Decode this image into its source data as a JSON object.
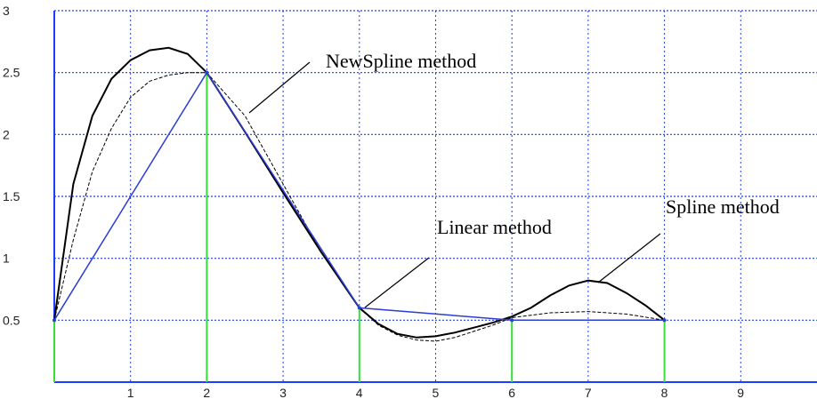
{
  "chart_data": {
    "type": "line",
    "title": "",
    "xlabel": "",
    "ylabel": "",
    "xlim": [
      0,
      10
    ],
    "ylim": [
      0,
      3
    ],
    "x_ticks": [
      "1",
      "2",
      "3",
      "4",
      "5",
      "6",
      "7",
      "8",
      "9"
    ],
    "y_ticks": [
      "0.5",
      "1",
      "1.5",
      "2",
      "2.5",
      "3"
    ],
    "grid": true,
    "data_points": {
      "x": [
        0,
        2,
        4,
        6,
        8
      ],
      "y": [
        0.5,
        2.5,
        0.6,
        0.5,
        0.5
      ]
    },
    "series": [
      {
        "style": "solid-dark",
        "x": [
          0,
          0.25,
          0.5,
          0.75,
          1.0,
          1.25,
          1.5,
          1.75,
          2.0,
          2.5,
          3.0,
          3.5,
          4.0,
          4.25,
          4.5,
          4.75,
          5.0,
          5.25,
          5.5,
          5.75,
          6.0,
          6.25,
          6.5,
          6.75,
          7.0,
          7.25,
          7.5,
          7.75,
          8.0
        ],
        "y": [
          0.5,
          1.6,
          2.15,
          2.45,
          2.6,
          2.68,
          2.7,
          2.65,
          2.5,
          2.02,
          1.53,
          1.05,
          0.6,
          0.47,
          0.39,
          0.36,
          0.37,
          0.4,
          0.44,
          0.48,
          0.53,
          0.6,
          0.7,
          0.78,
          0.82,
          0.8,
          0.72,
          0.62,
          0.5
        ]
      },
      {
        "style": "dashed",
        "x": [
          0,
          0.25,
          0.5,
          0.75,
          1.0,
          1.25,
          1.5,
          1.75,
          2.0,
          2.5,
          3.0,
          3.5,
          4.0,
          4.25,
          4.5,
          4.75,
          5.0,
          5.25,
          5.5,
          5.75,
          6.0,
          6.5,
          7.0,
          7.5,
          8.0
        ],
        "y": [
          0.5,
          1.15,
          1.7,
          2.05,
          2.3,
          2.43,
          2.48,
          2.5,
          2.5,
          2.15,
          1.6,
          1.05,
          0.6,
          0.46,
          0.38,
          0.34,
          0.33,
          0.36,
          0.41,
          0.46,
          0.52,
          0.56,
          0.57,
          0.55,
          0.5
        ]
      },
      {
        "style": "blue-linear",
        "x": [
          0,
          2,
          4,
          6,
          8
        ],
        "y": [
          0.5,
          2.5,
          0.6,
          0.5,
          0.5
        ]
      }
    ],
    "annotations": [
      {
        "text": "NewSpline method"
      },
      {
        "text": "Linear method"
      },
      {
        "text": "Spline method"
      }
    ],
    "colors": {
      "grid": "#1d3cff",
      "axis": "#1d3cff",
      "spline": "#000000",
      "linear": "#2b3dd6",
      "stems": "#35e035"
    }
  }
}
